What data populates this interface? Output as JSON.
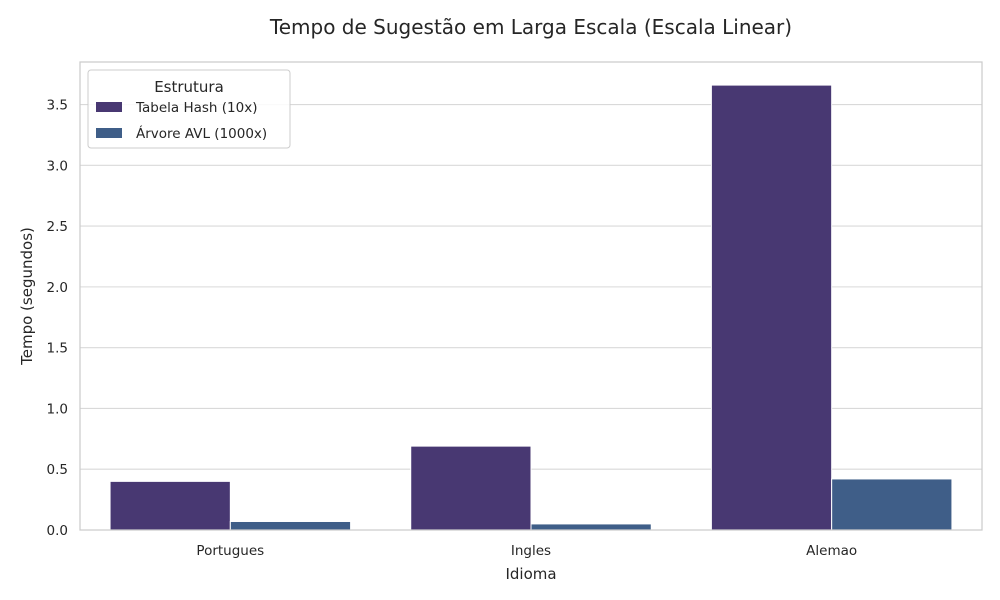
{
  "chart_data": {
    "type": "bar",
    "title": "Tempo de Sugestão em Larga Escala (Escala Linear)",
    "xlabel": "Idioma",
    "ylabel": "Tempo (segundos)",
    "categories": [
      "Portugues",
      "Ingles",
      "Alemao"
    ],
    "series": [
      {
        "name": "Tabela Hash (10x)",
        "values": [
          0.4,
          0.69,
          3.66
        ],
        "color": "#483872"
      },
      {
        "name": "Árvore AVL (1000x)",
        "values": [
          0.07,
          0.05,
          0.42
        ],
        "color": "#3f5e88"
      }
    ],
    "ylim": [
      0,
      3.85
    ],
    "yticks": [
      "0.0",
      "0.5",
      "1.0",
      "1.5",
      "2.0",
      "2.5",
      "3.0",
      "3.5"
    ],
    "legend": {
      "title": "Estrutura",
      "position": "top-left"
    },
    "grid": true
  },
  "colors": {
    "grid": "#d9d9d9",
    "frame": "#cccccc",
    "text": "#262626"
  }
}
